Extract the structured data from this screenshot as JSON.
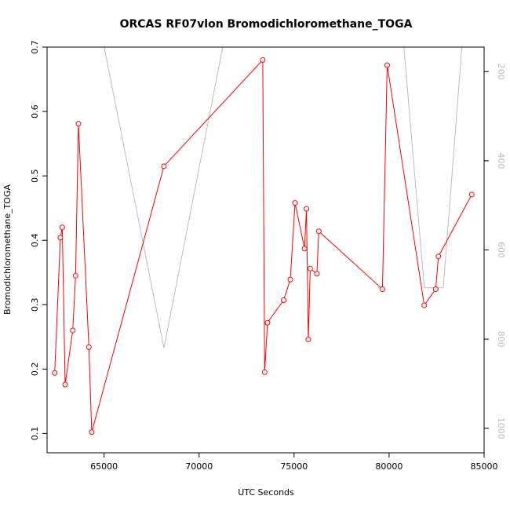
{
  "chart_data": {
    "type": "line",
    "title": "ORCAS RF07vlon Bromodichloromethane_TOGA",
    "xlabel": "UTC Seconds",
    "ylabel": "Bromodichloromethane_TOGA",
    "xlim": [
      62000,
      85000
    ],
    "ylim": [
      0.07,
      0.7
    ],
    "x_ticks": [
      65000,
      70000,
      75000,
      80000,
      85000
    ],
    "y_ticks": [
      0.1,
      0.2,
      0.3,
      0.4,
      0.5,
      0.6,
      0.7
    ],
    "y2lim": [
      1055,
      145
    ],
    "y2_ticks": [
      200,
      400,
      600,
      800,
      1000
    ],
    "grid": false,
    "series": [
      {
        "color": "#ff0000",
        "marker": "open-circle",
        "x": [
          62400,
          62700,
          62800,
          62950,
          63350,
          63500,
          63650,
          64200,
          64350,
          68150,
          73350,
          73450,
          73600,
          74450,
          74800,
          75050,
          75550,
          75650,
          75750,
          75850,
          76200,
          76300,
          79650,
          79900,
          81850,
          82450,
          82600,
          84350
        ],
        "y": [
          0.194,
          0.404,
          0.42,
          0.176,
          0.26,
          0.345,
          0.581,
          0.234,
          0.102,
          0.515,
          0.68,
          0.195,
          0.272,
          0.307,
          0.339,
          0.458,
          0.387,
          0.449,
          0.246,
          0.356,
          0.348,
          0.414,
          0.324,
          0.672,
          0.299,
          0.324,
          0.375,
          0.471
        ]
      },
      {
        "color": "#bbbbbb",
        "axis": "right",
        "x": [
          62000,
          68150,
          74200,
          79500,
          81850,
          82850,
          85000
        ],
        "y": [
          -500,
          820,
          -500,
          -500,
          685,
          685,
          -500
        ]
      }
    ]
  }
}
